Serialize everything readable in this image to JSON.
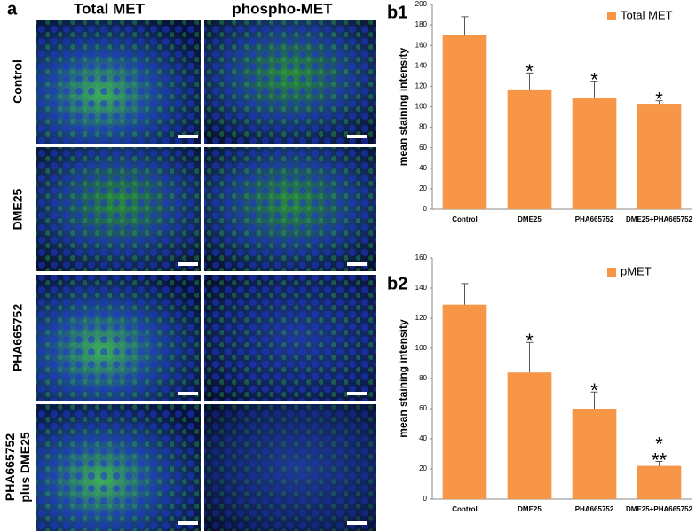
{
  "figure": {
    "panel_label": "a",
    "columns": [
      "Total MET",
      "phospho-MET"
    ],
    "rows": [
      [
        "Control"
      ],
      [
        "DME25"
      ],
      [
        "PHA665752"
      ],
      [
        "PHA665752",
        "plus DME25"
      ]
    ]
  },
  "chart_data": [
    {
      "type": "bar",
      "panel_label": "b1",
      "y_label": "mean staining intensity",
      "categories": [
        "Control",
        "DME25",
        "PHA665752",
        "DME25+PHA665752"
      ],
      "series": [
        {
          "name": "Total MET",
          "color": "#f79646",
          "values": [
            170,
            117,
            109,
            103
          ],
          "errors": [
            18,
            16,
            16,
            3
          ],
          "markers": [
            [],
            [
              "*"
            ],
            [
              "*"
            ],
            [
              "*"
            ]
          ]
        }
      ],
      "ylim": [
        0,
        200
      ],
      "yticks": [
        0,
        20,
        40,
        60,
        80,
        100,
        120,
        140,
        160,
        180,
        200
      ],
      "grid": false,
      "legend": "top-right"
    },
    {
      "type": "bar",
      "panel_label": "b2",
      "y_label": "mean staining intensity",
      "categories": [
        "Control",
        "DME25",
        "PHA665752",
        "DME25+PHA665752"
      ],
      "series": [
        {
          "name": "pMET",
          "color": "#f79646",
          "values": [
            129,
            84,
            60,
            22
          ],
          "errors": [
            14,
            20,
            11,
            3
          ],
          "markers": [
            [],
            [
              "*"
            ],
            [
              "*"
            ],
            [
              "*",
              "**"
            ]
          ]
        }
      ],
      "ylim": [
        0,
        160
      ],
      "yticks": [
        0,
        20,
        40,
        60,
        80,
        100,
        120,
        140,
        160
      ],
      "grid": false,
      "legend": "top-right"
    }
  ]
}
